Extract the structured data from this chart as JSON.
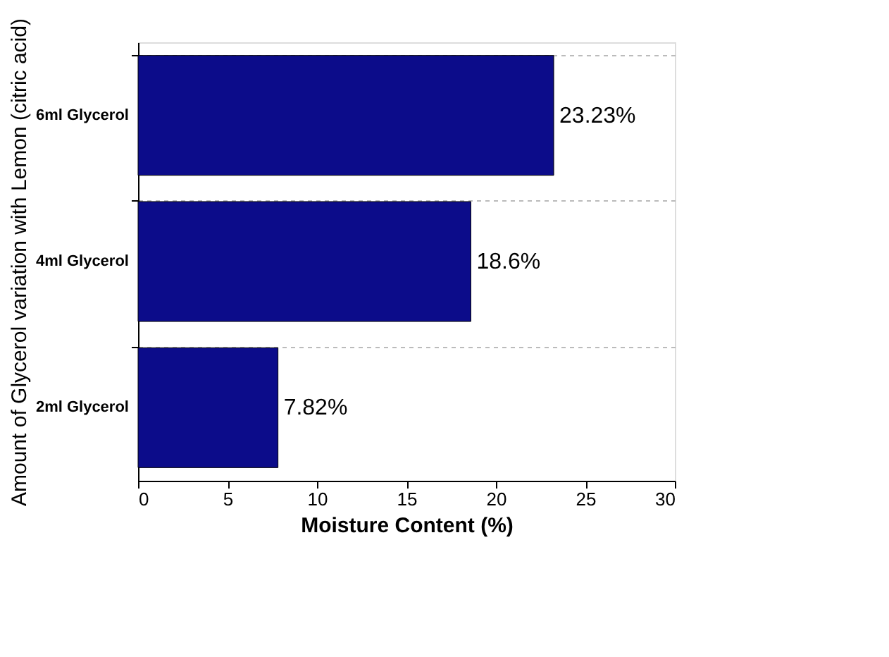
{
  "chart_data": {
    "type": "bar",
    "orientation": "horizontal",
    "xlabel": "Moisture Content (%)",
    "ylabel": "Amount of Glycerol variation with Lemon (citric acid)",
    "categories": [
      "6ml Glycerol",
      "4ml Glycerol",
      "2ml Glycerol"
    ],
    "values": [
      23.23,
      18.6,
      7.82
    ],
    "value_labels": [
      "23.23%",
      "18.6%",
      "7.82%"
    ],
    "color": "#0c0c8a",
    "xlim": [
      0,
      30
    ],
    "xticks": [
      0,
      5,
      10,
      15,
      20,
      25,
      30
    ],
    "grid": "y"
  }
}
